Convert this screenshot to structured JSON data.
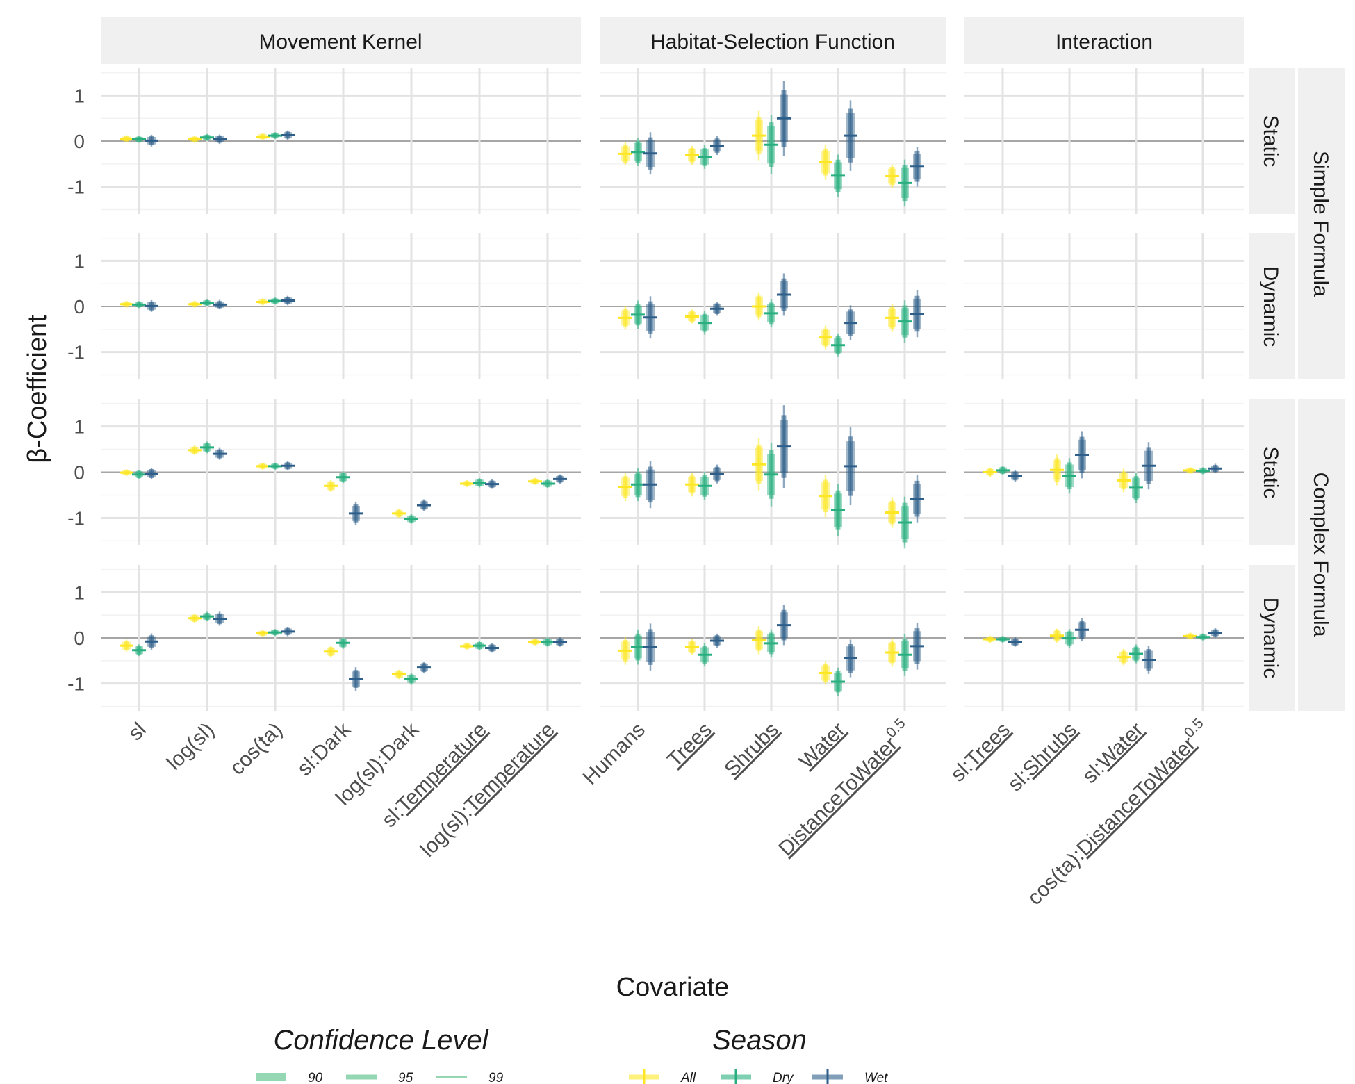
{
  "chart_data": {
    "type": "faceted-dot-interval",
    "ylabel": "β-Coefficient",
    "xlabel": "Covariate",
    "ylim": [
      -1.6,
      1.6
    ],
    "yticks": [
      1,
      0,
      -1
    ],
    "ytick_labels": [
      "1",
      "0",
      "-1"
    ],
    "panels": [
      {
        "id": "mk",
        "label": "Movement Kernel",
        "covariates": [
          {
            "name": "sl",
            "underline": ""
          },
          {
            "name": "log(sl)",
            "underline": ""
          },
          {
            "name": "cos(ta)",
            "underline": ""
          },
          {
            "name": "sl:Dark",
            "underline": ""
          },
          {
            "name": "log(sl):Dark",
            "underline": ""
          },
          {
            "name": "sl:Temperature",
            "underline": "Temperature"
          },
          {
            "name": "log(sl):Temperature",
            "underline": "Temperature"
          }
        ]
      },
      {
        "id": "hsf",
        "label": "Habitat-Selection Function",
        "covariates": [
          {
            "name": "Humans",
            "underline": ""
          },
          {
            "name": "Trees",
            "underline": "Trees"
          },
          {
            "name": "Shrubs",
            "underline": "Shrubs"
          },
          {
            "name": "Water",
            "underline": "Water"
          },
          {
            "name": "DistanceToWater",
            "underline": "DistanceToWater",
            "superscript": "0.5"
          }
        ]
      },
      {
        "id": "int",
        "label": "Interaction",
        "covariates": [
          {
            "name": "sl:Trees",
            "underline": "Trees"
          },
          {
            "name": "sl:Shrubs",
            "underline": "Shrubs"
          },
          {
            "name": "sl:Water",
            "underline": "Water"
          },
          {
            "name": "cos(ta):DistanceToWater",
            "underline": "DistanceToWater",
            "superscript": "0.5"
          }
        ]
      }
    ],
    "rows": [
      {
        "id": "ss",
        "strip": "Static",
        "group": "Simple Formula"
      },
      {
        "id": "sd",
        "strip": "Dynamic",
        "group": "Simple Formula"
      },
      {
        "id": "cs",
        "strip": "Static",
        "group": "Complex Formula"
      },
      {
        "id": "cd",
        "strip": "Dynamic",
        "group": "Complex Formula"
      }
    ],
    "row_groups": [
      "Simple Formula",
      "Complex Formula"
    ],
    "seasons": [
      {
        "name": "All",
        "color": "#FDE725"
      },
      {
        "name": "Dry",
        "color": "#29AF7F"
      },
      {
        "name": "Wet",
        "color": "#2E5F8A"
      }
    ],
    "confidence_levels": [
      {
        "level": "90",
        "z": 1.645
      },
      {
        "level": "95",
        "z": 1.96
      },
      {
        "level": "99",
        "z": 2.576
      }
    ],
    "legend_confidence_title": "Confidence Level",
    "legend_season_title": "Season",
    "legend_position": "bottom",
    "data_note": "Each estimate is [coefficient, standard error]; seasons in order All, Dry, Wet.",
    "estimates": {
      "ss": {
        "sl": [
          [
            0.05,
            0.03
          ],
          [
            0.04,
            0.03
          ],
          [
            0.01,
            0.05
          ]
        ],
        "log(sl)": [
          [
            0.04,
            0.03
          ],
          [
            0.08,
            0.03
          ],
          [
            0.04,
            0.04
          ]
        ],
        "cos(ta)": [
          [
            0.1,
            0.03
          ],
          [
            0.12,
            0.03
          ],
          [
            0.13,
            0.04
          ]
        ],
        "Humans": [
          [
            -0.28,
            0.1
          ],
          [
            -0.24,
            0.12
          ],
          [
            -0.27,
            0.18
          ]
        ],
        "Trees": [
          [
            -0.31,
            0.08
          ],
          [
            -0.35,
            0.1
          ],
          [
            -0.1,
            0.08
          ]
        ],
        "Shrubs": [
          [
            0.12,
            0.21
          ],
          [
            -0.08,
            0.25
          ],
          [
            0.5,
            0.32
          ]
        ],
        "Water": [
          [
            -0.46,
            0.15
          ],
          [
            -0.76,
            0.18
          ],
          [
            0.12,
            0.3
          ]
        ],
        "DistanceToWater": [
          [
            -0.77,
            0.1
          ],
          [
            -0.92,
            0.2
          ],
          [
            -0.56,
            0.17
          ]
        ]
      },
      "sd": {
        "sl": [
          [
            0.05,
            0.03
          ],
          [
            0.04,
            0.03
          ],
          [
            0.01,
            0.05
          ]
        ],
        "log(sl)": [
          [
            0.05,
            0.03
          ],
          [
            0.08,
            0.03
          ],
          [
            0.04,
            0.04
          ]
        ],
        "cos(ta)": [
          [
            0.1,
            0.03
          ],
          [
            0.12,
            0.03
          ],
          [
            0.13,
            0.04
          ]
        ],
        "Humans": [
          [
            -0.25,
            0.1
          ],
          [
            -0.18,
            0.12
          ],
          [
            -0.24,
            0.18
          ]
        ],
        "Trees": [
          [
            -0.22,
            0.06
          ],
          [
            -0.36,
            0.1
          ],
          [
            -0.05,
            0.06
          ]
        ],
        "Shrubs": [
          [
            0.0,
            0.12
          ],
          [
            -0.15,
            0.12
          ],
          [
            0.26,
            0.18
          ]
        ],
        "Water": [
          [
            -0.68,
            0.1
          ],
          [
            -0.85,
            0.1
          ],
          [
            -0.36,
            0.15
          ]
        ],
        "DistanceToWater": [
          [
            -0.25,
            0.12
          ],
          [
            -0.33,
            0.18
          ],
          [
            -0.16,
            0.2
          ]
        ]
      },
      "cs": {
        "sl": [
          [
            -0.01,
            0.03
          ],
          [
            -0.05,
            0.04
          ],
          [
            -0.03,
            0.05
          ]
        ],
        "log(sl)": [
          [
            0.48,
            0.04
          ],
          [
            0.54,
            0.05
          ],
          [
            0.4,
            0.05
          ]
        ],
        "cos(ta)": [
          [
            0.13,
            0.03
          ],
          [
            0.13,
            0.03
          ],
          [
            0.14,
            0.04
          ]
        ],
        "sl:Dark": [
          [
            -0.3,
            0.05
          ],
          [
            -0.11,
            0.05
          ],
          [
            -0.9,
            0.1
          ]
        ],
        "log(sl):Dark": [
          [
            -0.9,
            0.04
          ],
          [
            -1.02,
            0.04
          ],
          [
            -0.72,
            0.05
          ]
        ],
        "sl:Temperature": [
          [
            -0.25,
            0.03
          ],
          [
            -0.23,
            0.04
          ],
          [
            -0.26,
            0.04
          ]
        ],
        "log(sl):Temperature": [
          [
            -0.2,
            0.03
          ],
          [
            -0.25,
            0.04
          ],
          [
            -0.15,
            0.04
          ]
        ],
        "Humans": [
          [
            -0.32,
            0.12
          ],
          [
            -0.27,
            0.14
          ],
          [
            -0.27,
            0.2
          ]
        ],
        "Trees": [
          [
            -0.27,
            0.1
          ],
          [
            -0.3,
            0.12
          ],
          [
            -0.04,
            0.08
          ]
        ],
        "Shrubs": [
          [
            0.17,
            0.22
          ],
          [
            -0.05,
            0.27
          ],
          [
            0.56,
            0.35
          ]
        ],
        "Water": [
          [
            -0.52,
            0.18
          ],
          [
            -0.83,
            0.22
          ],
          [
            0.13,
            0.33
          ]
        ],
        "DistanceToWater": [
          [
            -0.88,
            0.13
          ],
          [
            -1.1,
            0.22
          ],
          [
            -0.58,
            0.2
          ]
        ],
        "sl:Trees": [
          [
            0.0,
            0.04
          ],
          [
            0.04,
            0.04
          ],
          [
            -0.08,
            0.05
          ]
        ],
        "sl:Shrubs": [
          [
            0.05,
            0.13
          ],
          [
            -0.08,
            0.15
          ],
          [
            0.38,
            0.2
          ]
        ],
        "sl:Water": [
          [
            -0.18,
            0.1
          ],
          [
            -0.34,
            0.13
          ],
          [
            0.14,
            0.2
          ]
        ],
        "cos(ta):DistanceToWater": [
          [
            0.04,
            0.03
          ],
          [
            0.03,
            0.03
          ],
          [
            0.08,
            0.04
          ]
        ]
      },
      "cd": {
        "sl": [
          [
            -0.17,
            0.05
          ],
          [
            -0.27,
            0.05
          ],
          [
            -0.08,
            0.07
          ]
        ],
        "log(sl)": [
          [
            0.43,
            0.04
          ],
          [
            0.47,
            0.04
          ],
          [
            0.42,
            0.06
          ]
        ],
        "cos(ta)": [
          [
            0.1,
            0.03
          ],
          [
            0.12,
            0.03
          ],
          [
            0.14,
            0.04
          ]
        ],
        "sl:Dark": [
          [
            -0.3,
            0.05
          ],
          [
            -0.11,
            0.05
          ],
          [
            -0.9,
            0.1
          ]
        ],
        "log(sl):Dark": [
          [
            -0.8,
            0.04
          ],
          [
            -0.9,
            0.05
          ],
          [
            -0.65,
            0.05
          ]
        ],
        "sl:Temperature": [
          [
            -0.18,
            0.03
          ],
          [
            -0.17,
            0.04
          ],
          [
            -0.22,
            0.04
          ]
        ],
        "log(sl):Temperature": [
          [
            -0.09,
            0.03
          ],
          [
            -0.09,
            0.04
          ],
          [
            -0.09,
            0.04
          ]
        ],
        "Humans": [
          [
            -0.28,
            0.12
          ],
          [
            -0.2,
            0.15
          ],
          [
            -0.2,
            0.2
          ]
        ],
        "Trees": [
          [
            -0.2,
            0.07
          ],
          [
            -0.37,
            0.1
          ],
          [
            -0.06,
            0.06
          ]
        ],
        "Shrubs": [
          [
            -0.05,
            0.12
          ],
          [
            -0.12,
            0.12
          ],
          [
            0.28,
            0.17
          ]
        ],
        "Water": [
          [
            -0.77,
            0.1
          ],
          [
            -0.96,
            0.12
          ],
          [
            -0.45,
            0.16
          ]
        ],
        "DistanceToWater": [
          [
            -0.32,
            0.12
          ],
          [
            -0.37,
            0.18
          ],
          [
            -0.18,
            0.2
          ]
        ],
        "sl:Trees": [
          [
            -0.03,
            0.03
          ],
          [
            -0.03,
            0.03
          ],
          [
            -0.09,
            0.04
          ]
        ],
        "sl:Shrubs": [
          [
            0.05,
            0.06
          ],
          [
            -0.01,
            0.08
          ],
          [
            0.18,
            0.1
          ]
        ],
        "sl:Water": [
          [
            -0.42,
            0.07
          ],
          [
            -0.35,
            0.08
          ],
          [
            -0.48,
            0.12
          ]
        ],
        "cos(ta):DistanceToWater": [
          [
            0.04,
            0.03
          ],
          [
            0.02,
            0.03
          ],
          [
            0.11,
            0.04
          ]
        ]
      }
    }
  }
}
